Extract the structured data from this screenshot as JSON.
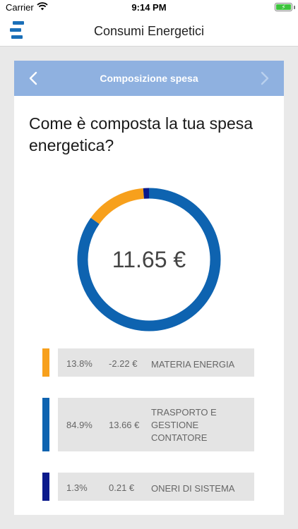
{
  "status_bar": {
    "carrier": "Carrier",
    "time": "9:14 PM",
    "battery_icon": "battery-charging-icon",
    "wifi_icon": "wifi-icon"
  },
  "nav": {
    "title": "Consumi Energetici",
    "menu_icon": "app-logo-menu-icon"
  },
  "card": {
    "header_title": "Composizione spesa",
    "prev_icon": "chevron-left-icon",
    "next_icon": "chevron-right-icon",
    "question": "Come è composta la tua spesa energetica?",
    "total": "11.65 €"
  },
  "colors": {
    "header_bg": "#8fb1e0",
    "materia": "#f7a01c",
    "trasporto": "#0e63b0",
    "oneri": "#0b1a8c"
  },
  "legend": [
    {
      "percent": "13.8%",
      "amount": "-2.22 €",
      "label": "MATERIA ENERGIA",
      "color": "#f7a01c"
    },
    {
      "percent": "84.9%",
      "amount": "13.66 €",
      "label": "TRASPORTO E GESTIONE CONTATORE",
      "color": "#0e63b0"
    },
    {
      "percent": "1.3%",
      "amount": "0.21 €",
      "label": "ONERI DI SISTEMA",
      "color": "#0b1a8c"
    }
  ],
  "chart_data": {
    "type": "pie",
    "categories": [
      "MATERIA ENERGIA",
      "TRASPORTO E GESTIONE CONTATORE",
      "ONERI DI SISTEMA"
    ],
    "values": [
      13.8,
      84.9,
      1.3
    ],
    "amounts": [
      -2.22,
      13.66,
      0.21
    ],
    "colors": [
      "#f7a01c",
      "#0e63b0",
      "#0b1a8c"
    ]
  }
}
